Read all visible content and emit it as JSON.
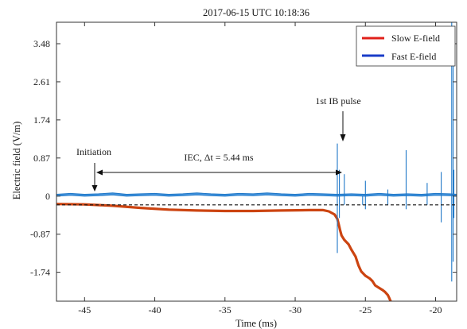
{
  "chart_data": {
    "type": "line",
    "title": "2017-06-15   UTC   10:18:36",
    "xlabel": "Time (ms)",
    "ylabel": "Electric field (V/m)",
    "xlim": [
      -47,
      -18.5
    ],
    "ylim": [
      -2.4,
      3.97
    ],
    "xticks": [
      -45,
      -40,
      -35,
      -30,
      -25,
      -20
    ],
    "xtick_labels": [
      "-45",
      "-40",
      "-35",
      "-30",
      "-25",
      "-20"
    ],
    "yticks": [
      -1.74,
      -0.87,
      0,
      0.87,
      1.74,
      2.61,
      3.48
    ],
    "ytick_labels": [
      "-1.74",
      "-0.87",
      "0",
      "0.87",
      "1.74",
      "2.61",
      "3.48"
    ],
    "grid": false,
    "legend_position": "top-right",
    "zero_line": {
      "y": -0.2,
      "style": "dashed"
    },
    "series": [
      {
        "name": "Slow E-field",
        "color": "#cc4411",
        "legend_color": "#e0201a",
        "line_width": 3.2,
        "x": [
          -47,
          -45,
          -43,
          -41,
          -39,
          -37,
          -35,
          -33,
          -31,
          -29,
          -28,
          -27.6,
          -27.2,
          -27.0,
          -26.9,
          -26.8,
          -26.7,
          -26.5,
          -26.2,
          -26.0,
          -25.7,
          -25.5,
          -25.3,
          -25.0,
          -24.7,
          -24.5,
          -24.3,
          -24.0,
          -23.8,
          -23.6,
          -23.4,
          -23.3,
          -23.2
        ],
        "y": [
          -0.18,
          -0.19,
          -0.22,
          -0.27,
          -0.31,
          -0.33,
          -0.34,
          -0.34,
          -0.33,
          -0.32,
          -0.32,
          -0.35,
          -0.42,
          -0.52,
          -0.64,
          -0.78,
          -0.9,
          -1.0,
          -1.1,
          -1.22,
          -1.38,
          -1.58,
          -1.72,
          -1.82,
          -1.88,
          -1.94,
          -2.04,
          -2.1,
          -2.14,
          -2.19,
          -2.26,
          -2.33,
          -2.4
        ]
      },
      {
        "name": "Fast E-field",
        "color": "#1f78c8",
        "legend_color": "#1a3cc8",
        "line_width": 1.2,
        "x": [
          -47,
          -46,
          -45,
          -44,
          -43,
          -42,
          -41,
          -40,
          -39,
          -38,
          -37,
          -36,
          -35,
          -34,
          -33,
          -32,
          -31,
          -30,
          -29,
          -28,
          -27,
          -26,
          -25,
          -24,
          -23,
          -22,
          -21,
          -20,
          -19,
          -18.5
        ],
        "y": [
          0.02,
          0.04,
          0.02,
          0.03,
          0.05,
          0.02,
          0.03,
          0.04,
          0.02,
          0.03,
          0.05,
          0.03,
          0.02,
          0.04,
          0.03,
          0.05,
          0.03,
          0.02,
          0.04,
          0.03,
          0.02,
          0.03,
          0.02,
          0.04,
          0.02,
          0.03,
          0.02,
          0.04,
          0.03,
          0.02
        ]
      }
    ],
    "pulses": {
      "x": [
        -27.0,
        -26.85,
        -26.5,
        -25.2,
        -25.0,
        -23.4,
        -22.1,
        -20.6,
        -19.6,
        -18.85,
        -18.75,
        -18.7
      ],
      "hi": [
        1.2,
        0.6,
        0.5,
        0.0,
        0.35,
        0.15,
        1.05,
        0.3,
        0.55,
        3.97,
        3.2,
        0.6
      ],
      "lo": [
        -1.3,
        -0.5,
        -0.2,
        -0.2,
        -0.3,
        -0.2,
        -0.3,
        -0.2,
        -0.6,
        -1.95,
        -1.5,
        -0.5
      ]
    }
  },
  "annotations": {
    "initiation": "Initiation",
    "iec": "IEC, Δt = 5.44 ms",
    "pulse": "1st IB pulse"
  }
}
